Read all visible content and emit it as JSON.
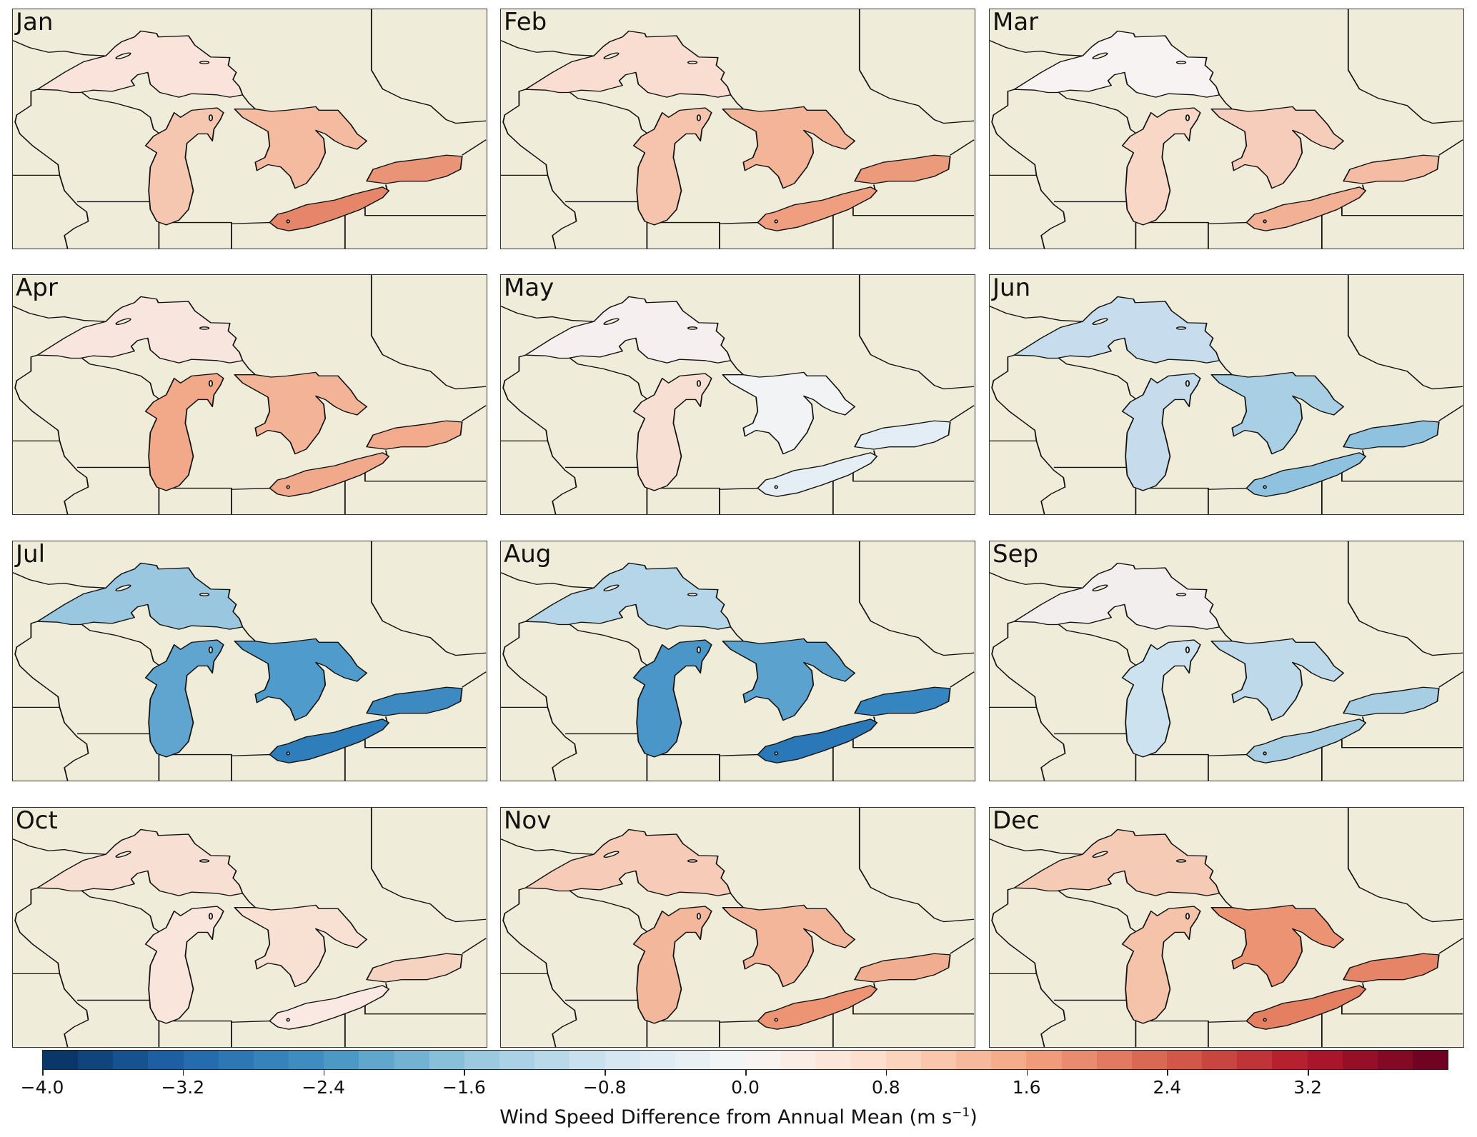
{
  "chart_data": {
    "type": "heatmap",
    "title": "",
    "description_units": "m s-1",
    "colorbar": {
      "label": "Wind Speed Difference from Annual Mean (m s",
      "label_sup": "−1",
      "label_close": ")",
      "range": [
        -4.0,
        4.0
      ],
      "ticks": [
        "−4.0",
        "−3.2",
        "−2.4",
        "−1.6",
        "−0.8",
        "0.0",
        "0.8",
        "1.6",
        "2.4",
        "3.2"
      ],
      "tick_values": [
        -4.0,
        -3.2,
        -2.4,
        -1.6,
        -0.8,
        0.0,
        0.8,
        1.6,
        2.4,
        3.2
      ],
      "levels": 40,
      "colormap": "RdBu_r"
    },
    "lakes": [
      "Superior",
      "Michigan",
      "Huron",
      "Erie",
      "Ontario"
    ],
    "panels": [
      {
        "month": "Jan",
        "values": [
          0.2,
          0.6,
          0.8,
          2.0,
          1.7
        ]
      },
      {
        "month": "Feb",
        "values": [
          0.4,
          0.7,
          1.0,
          1.5,
          1.6
        ]
      },
      {
        "month": "Mar",
        "values": [
          0.0,
          0.4,
          0.5,
          1.0,
          0.8
        ]
      },
      {
        "month": "Apr",
        "values": [
          0.2,
          1.2,
          1.0,
          1.1,
          1.1
        ]
      },
      {
        "month": "May",
        "values": [
          0.0,
          0.3,
          -0.1,
          -0.2,
          -0.2
        ]
      },
      {
        "month": "Jun",
        "values": [
          -0.6,
          -0.6,
          -0.9,
          -1.2,
          -1.2
        ]
      },
      {
        "month": "Jul",
        "values": [
          -1.3,
          -2.0,
          -2.2,
          -2.8,
          -2.5
        ]
      },
      {
        "month": "Aug",
        "values": [
          -0.9,
          -2.3,
          -2.0,
          -2.9,
          -2.6
        ]
      },
      {
        "month": "Sep",
        "values": [
          0.0,
          -0.5,
          -0.7,
          -1.0,
          -1.0
        ]
      },
      {
        "month": "Oct",
        "values": [
          0.3,
          0.2,
          0.3,
          0.1,
          0.5
        ]
      },
      {
        "month": "Nov",
        "values": [
          0.6,
          1.0,
          1.0,
          1.7,
          1.1
        ]
      },
      {
        "month": "Dec",
        "values": [
          0.6,
          0.7,
          1.7,
          2.1,
          2.0
        ]
      }
    ],
    "panel_colors": {
      "Jan": [
        "#f9e3da",
        "#f6c7b0",
        "#f4bba0",
        "#e5866a",
        "#ea9477"
      ],
      "Feb": [
        "#f8ddd0",
        "#f6c4ac",
        "#f3b498",
        "#ef9e80",
        "#ec9a7c"
      ],
      "Mar": [
        "#f7f3f2",
        "#f8d7c7",
        "#f6cdba",
        "#f2b095",
        "#f4bca2"
      ],
      "Apr": [
        "#f8e6de",
        "#f1a98a",
        "#f3b397",
        "#f1a98b",
        "#f2ab8c"
      ],
      "May": [
        "#f5f0ef",
        "#f8dfd3",
        "#f2f3f5",
        "#e6eef5",
        "#e3edf5"
      ],
      "Jun": [
        "#c7dcec",
        "#c6dcec",
        "#a9cfe5",
        "#8fc2de",
        "#8fc2de"
      ],
      "Jul": [
        "#99c7e0",
        "#5fa5cf",
        "#4f9bcb",
        "#2f7ebc",
        "#3d8ac2"
      ],
      "Aug": [
        "#b5d5e8",
        "#4a96c8",
        "#5ba3ce",
        "#2a78b8",
        "#3586c0"
      ],
      "Sep": [
        "#f3eeee",
        "#cde2ef",
        "#bed9ea",
        "#a8cee4",
        "#a8cee4"
      ],
      "Oct": [
        "#f8dfd3",
        "#f9e5dc",
        "#f8e0d3",
        "#f9e9e2",
        "#f6d2c1"
      ],
      "Nov": [
        "#f6ccb8",
        "#f3b79c",
        "#f3b69b",
        "#ec9474",
        "#f1ad90"
      ],
      "Dec": [
        "#f6cbb6",
        "#f5c3aa",
        "#eb9373",
        "#e47f62",
        "#e58466"
      ]
    },
    "land_color": "#efedda"
  }
}
